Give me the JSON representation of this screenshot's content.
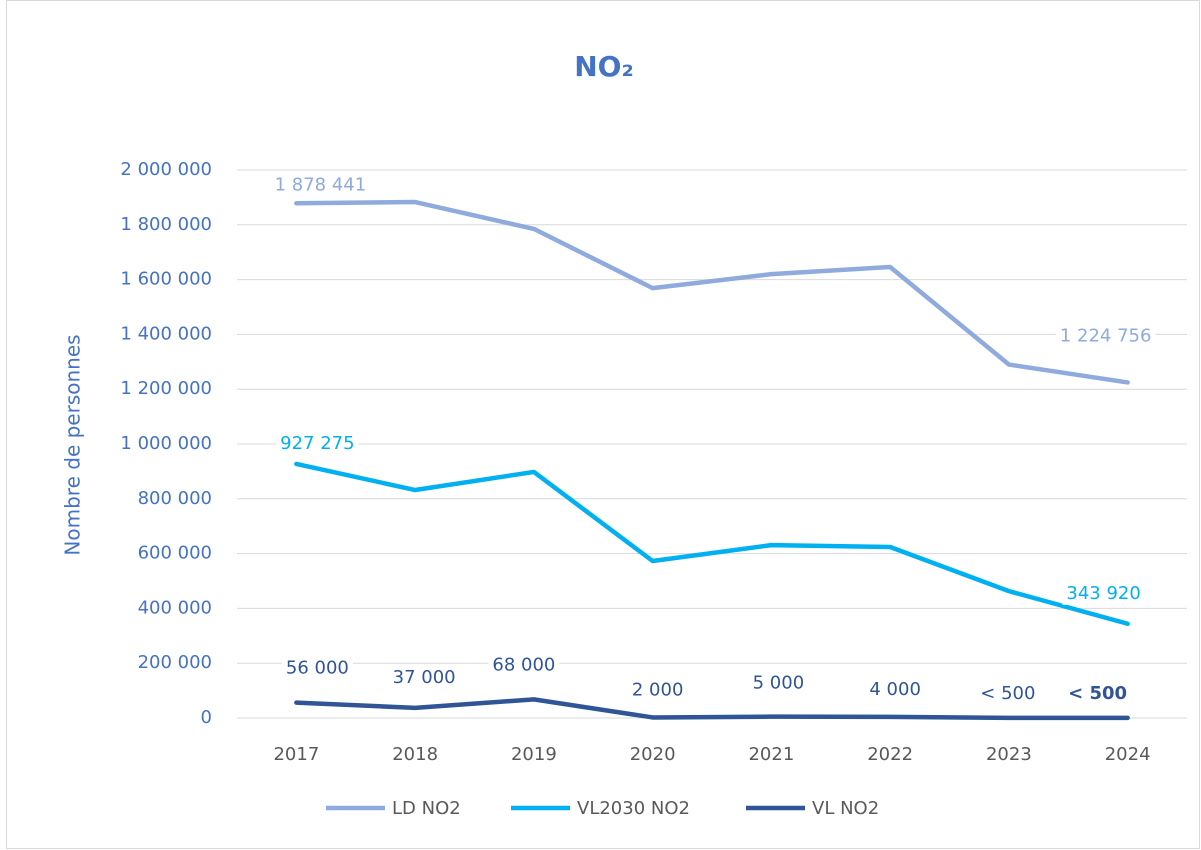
{
  "chart_data": {
    "type": "line",
    "title": "NO₂",
    "y_label": "Nombre de personnes",
    "categories": [
      "2017",
      "2018",
      "2019",
      "2020",
      "2021",
      "2022",
      "2023",
      "2024"
    ],
    "series": [
      {
        "name": "LD NO2",
        "color": "#8faadc",
        "values": [
          1878441,
          1883000,
          1785000,
          1569000,
          1620000,
          1646000,
          1290000,
          1224756
        ],
        "value_labels": [
          "1 878 441",
          null,
          null,
          null,
          null,
          null,
          null,
          "1 224 756"
        ]
      },
      {
        "name": "VL2030 NO2",
        "color": "#00b0f0",
        "values": [
          927275,
          832000,
          898000,
          573000,
          631000,
          624000,
          463000,
          343920
        ],
        "value_labels": [
          "927 275",
          null,
          null,
          null,
          null,
          null,
          null,
          "343 920"
        ]
      },
      {
        "name": "VL NO2",
        "color": "#2f5597",
        "values": [
          56000,
          37000,
          68000,
          2000,
          5000,
          4000,
          500,
          500
        ],
        "value_labels": [
          "56 000",
          "37 000",
          "68 000",
          "2 000",
          "5 000",
          "4 000",
          "< 500",
          "< 500"
        ]
      }
    ],
    "ylim": [
      0,
      2000000
    ],
    "yticks": [
      0,
      {
        "value": 200000,
        "label": "200 000"
      },
      {
        "value": 400000,
        "label": "400 000"
      },
      {
        "value": 600000,
        "label": "600 000"
      },
      {
        "value": 800000,
        "label": "800 000"
      },
      {
        "value": 1000000,
        "label": "1 000 000"
      },
      {
        "value": 1200000,
        "label": "1 200 000"
      },
      {
        "value": 1400000,
        "label": "1 400 000"
      },
      {
        "value": 1600000,
        "label": "1 600 000"
      },
      {
        "value": 1800000,
        "label": "1 800 000"
      },
      {
        "value": 2000000,
        "label": "2 000 000"
      }
    ],
    "grid": true,
    "legend": "bottom"
  }
}
